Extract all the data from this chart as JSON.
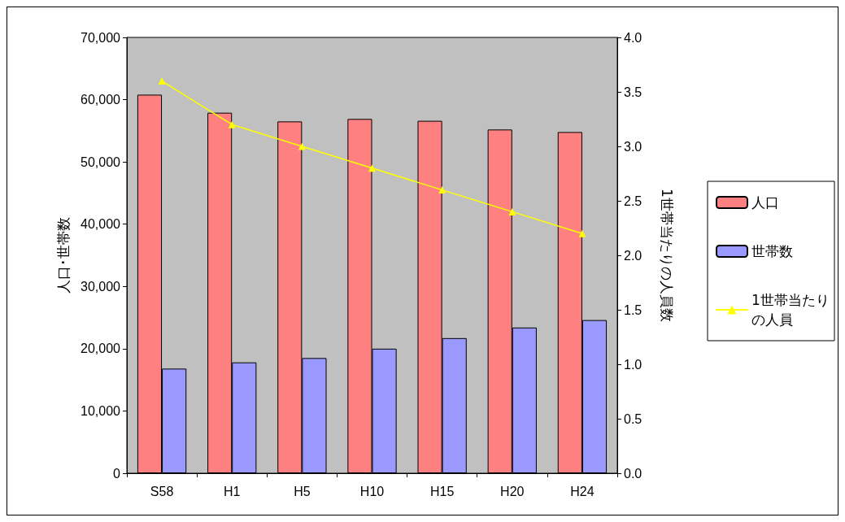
{
  "chart_data": {
    "type": "bar",
    "categories": [
      "S58",
      "H1",
      "H5",
      "H10",
      "H15",
      "H20",
      "H24"
    ],
    "ylabel": "人口･世帯数",
    "y2label": "1世帯当たりの人員数",
    "series": [
      {
        "name": "人口",
        "color": "#ff8080",
        "values": [
          60800,
          57900,
          56500,
          56900,
          56600,
          55200,
          54800
        ]
      },
      {
        "name": "世帯数",
        "color": "#9999ff",
        "values": [
          16800,
          17800,
          18500,
          20000,
          21700,
          23400,
          24600
        ]
      },
      {
        "name": "1世帯当たりの人員",
        "type": "line",
        "axis": "y2",
        "color": "#ffff00",
        "values": [
          3.6,
          3.2,
          3.0,
          2.8,
          2.6,
          2.4,
          2.2
        ]
      }
    ],
    "ylim": [
      0,
      70000
    ],
    "yticks": [
      {
        "value": 0,
        "label": "0"
      },
      {
        "value": 10000,
        "label": "10,000"
      },
      {
        "value": 20000,
        "label": "20,000"
      },
      {
        "value": 30000,
        "label": "30,000"
      },
      {
        "value": 40000,
        "label": "40,000"
      },
      {
        "value": 50000,
        "label": "50,000"
      },
      {
        "value": 60000,
        "label": "60,000"
      },
      {
        "value": 70000,
        "label": "70,000"
      }
    ],
    "y2lim": [
      0,
      4
    ],
    "y2ticks": [
      {
        "value": 0,
        "label": "0.0"
      },
      {
        "value": 0.5,
        "label": "0.5"
      },
      {
        "value": 1,
        "label": "1.0"
      },
      {
        "value": 1.5,
        "label": "1.5"
      },
      {
        "value": 2,
        "label": "2.0"
      },
      {
        "value": 2.5,
        "label": "2.5"
      },
      {
        "value": 3,
        "label": "3.0"
      },
      {
        "value": 3.5,
        "label": "3.5"
      },
      {
        "value": 4,
        "label": "4.0"
      }
    ],
    "grid": false,
    "legend": "right",
    "marker": "triangle",
    "line_style": "solid"
  }
}
